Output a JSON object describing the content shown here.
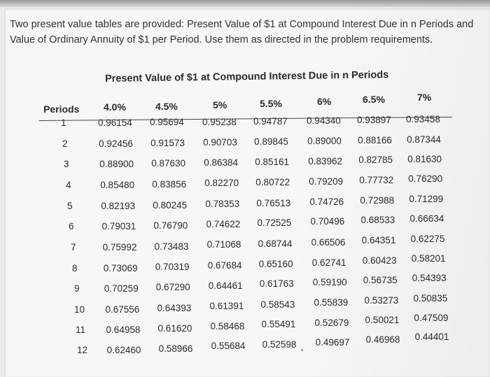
{
  "intro": {
    "line1": "Two present value tables are provided: Present Value of $1 at Compound Interest Due in n Periods and",
    "line2": "Value of Ordinary Annuity of $1 per Period. Use them as directed in the problem requirements."
  },
  "table": {
    "title": "Present Value of $1 at Compound Interest Due in n Periods",
    "periods_header": "Periods",
    "rate_headers": [
      "4.0%",
      "4.5%",
      "5%",
      "5.5%",
      "6%",
      "6.5%",
      "7%"
    ],
    "rows": [
      {
        "period": "1",
        "values": [
          "0.96154",
          "0.95694",
          "0.95238",
          "0.94787",
          "0.94340",
          "0.93897",
          "0.93458"
        ]
      },
      {
        "period": "2",
        "values": [
          "0.92456",
          "0.91573",
          "0.90703",
          "0.89845",
          "0.89000",
          "0.88166",
          "0.87344"
        ]
      },
      {
        "period": "3",
        "values": [
          "0.88900",
          "0.87630",
          "0.86384",
          "0.85161",
          "0.83962",
          "0.82785",
          "0.81630"
        ]
      },
      {
        "period": "4",
        "values": [
          "0.85480",
          "0.83856",
          "0.82270",
          "0.80722",
          "0.79209",
          "0.77732",
          "0.76290"
        ]
      },
      {
        "period": "5",
        "values": [
          "0.82193",
          "0.80245",
          "0.78353",
          "0.76513",
          "0.74726",
          "0.72988",
          "0.71299"
        ]
      },
      {
        "period": "6",
        "values": [
          "0.79031",
          "0.76790",
          "0.74622",
          "0.72525",
          "0.70496",
          "0.68533",
          "0.66634"
        ]
      },
      {
        "period": "7",
        "values": [
          "0.75992",
          "0.73483",
          "0.71068",
          "0.68744",
          "0.66506",
          "0.64351",
          "0.62275"
        ]
      },
      {
        "period": "8",
        "values": [
          "0.73069",
          "0.70319",
          "0.67684",
          "0.65160",
          "0.62741",
          "0.60423",
          "0.58201"
        ]
      },
      {
        "period": "9",
        "values": [
          "0.70259",
          "0.67290",
          "0.64461",
          "0.61763",
          "0.59190",
          "0.56735",
          "0.54393"
        ]
      },
      {
        "period": "10",
        "values": [
          "0.67556",
          "0.64393",
          "0.61391",
          "0.58543",
          "0.55839",
          "0.53273",
          "0.50835"
        ]
      },
      {
        "period": "11",
        "values": [
          "0.64958",
          "0.61620",
          "0.58468",
          "0.55491",
          "0.52679",
          "0.50021",
          "0.47509"
        ]
      },
      {
        "period": "12",
        "values": [
          "0.62460",
          "0.58966",
          "0.55684",
          "0.52598",
          "0.49697",
          "0.46968",
          "0.44401"
        ]
      }
    ]
  }
}
